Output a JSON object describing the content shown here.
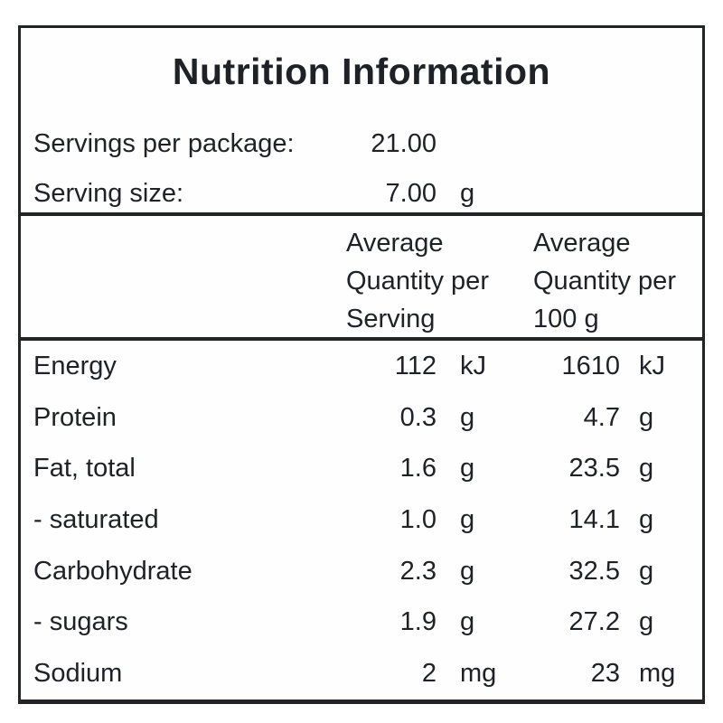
{
  "label": {
    "title": "Nutrition Information",
    "servings_per_package": {
      "label": "Servings per package:",
      "value": "21.00",
      "unit": ""
    },
    "serving_size": {
      "label": "Serving size:",
      "value": "7.00",
      "unit": "g"
    },
    "columns": {
      "per_serving": "Average\nQuantity per\nServing",
      "per_100g": "Average\nQuantity per\n100 g"
    },
    "rows": [
      {
        "name": "Energy",
        "per_serving": "112",
        "per_serving_unit": "kJ",
        "per_100g": "1610",
        "per_100g_unit": "kJ"
      },
      {
        "name": "Protein",
        "per_serving": "0.3",
        "per_serving_unit": "g",
        "per_100g": "4.7",
        "per_100g_unit": "g"
      },
      {
        "name": "Fat, total",
        "per_serving": "1.6",
        "per_serving_unit": "g",
        "per_100g": "23.5",
        "per_100g_unit": "g"
      },
      {
        "name": "- saturated",
        "per_serving": "1.0",
        "per_serving_unit": "g",
        "per_100g": "14.1",
        "per_100g_unit": "g"
      },
      {
        "name": "Carbohydrate",
        "per_serving": "2.3",
        "per_serving_unit": "g",
        "per_100g": "32.5",
        "per_100g_unit": "g"
      },
      {
        "name": "- sugars",
        "per_serving": "1.9",
        "per_serving_unit": "g",
        "per_100g": "27.2",
        "per_100g_unit": "g"
      },
      {
        "name": "Sodium",
        "per_serving": "2",
        "per_serving_unit": "mg",
        "per_100g": "23",
        "per_100g_unit": "mg"
      }
    ],
    "colors": {
      "text": "#1e2227",
      "border": "#222426",
      "background": "#ffffff"
    }
  }
}
